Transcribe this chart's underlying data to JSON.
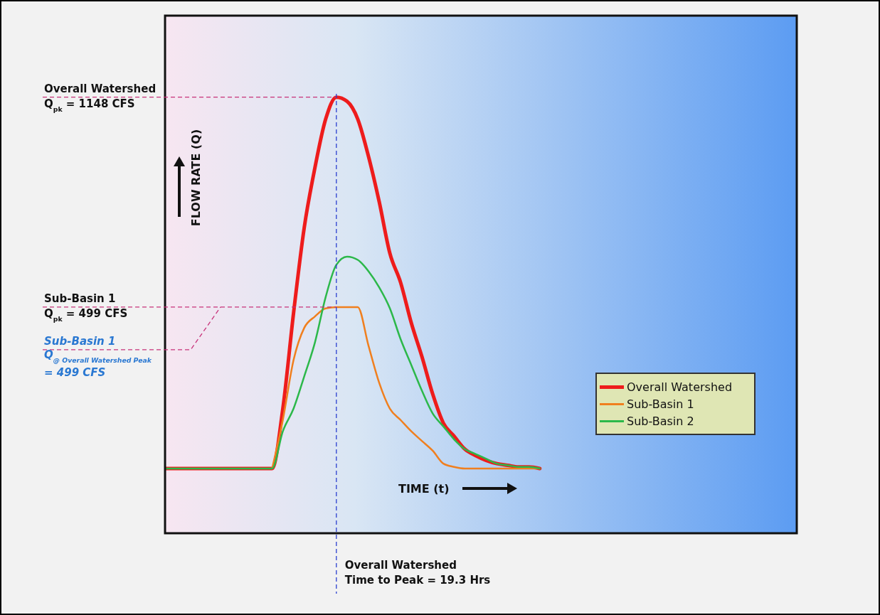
{
  "chart_data": {
    "type": "line",
    "ylim": [
      -200,
      1400
    ],
    "tick_labels": false,
    "xlabel": "TIME (t)",
    "categories": [
      null,
      null,
      null,
      null,
      null,
      null,
      null,
      null,
      null,
      null,
      null,
      null,
      null,
      null,
      null,
      null,
      null,
      null,
      null,
      null,
      null,
      null,
      null,
      null,
      null,
      null,
      null,
      null,
      null,
      null,
      null,
      null,
      null,
      null,
      null,
      null,
      null,
      null,
      null,
      null,
      null,
      null,
      null,
      null,
      null,
      null,
      null,
      null,
      null,
      null,
      null,
      null,
      null,
      null,
      null,
      null,
      null,
      null,
      null,
      null
    ],
    "series": [
      {
        "name": "Overall Watershed",
        "color": "#ee1c1c",
        "values": [
          0,
          0,
          0,
          0,
          0,
          0,
          0,
          0,
          0,
          0,
          0,
          185,
          480,
          745,
          930,
          1080,
          1148,
          1135,
          1080,
          965,
          825,
          665,
          575,
          450,
          345,
          230,
          140,
          100,
          60,
          40,
          25,
          15,
          10,
          5,
          5,
          0,
          null,
          null,
          null,
          null,
          null,
          null,
          null,
          null,
          null,
          null,
          null,
          null,
          null,
          null,
          null,
          null,
          null,
          null,
          null,
          null,
          null,
          null,
          null,
          null
        ]
      },
      {
        "name": "Sub-Basin 1",
        "color": "#f07f1e",
        "values": [
          null,
          null,
          null,
          null,
          null,
          null,
          null,
          null,
          null,
          null,
          0,
          150,
          335,
          435,
          470,
          495,
          499,
          499,
          499,
          380,
          265,
          185,
          150,
          115,
          85,
          55,
          15,
          5,
          0,
          0,
          0,
          0,
          0,
          0,
          0,
          0,
          null,
          null,
          null,
          null,
          null,
          null,
          null,
          null,
          null,
          null,
          null,
          null,
          null,
          null,
          null,
          null,
          null,
          null,
          null,
          null,
          null,
          null,
          null,
          null
        ]
      },
      {
        "name": "Sub-Basin 2",
        "color": "#2cb84a",
        "values": [
          0,
          0,
          0,
          0,
          0,
          0,
          0,
          0,
          0,
          0,
          0,
          115,
          185,
          285,
          390,
          530,
          630,
          655,
          645,
          610,
          560,
          495,
          400,
          320,
          240,
          170,
          130,
          90,
          60,
          45,
          30,
          15,
          10,
          5,
          5,
          0,
          null,
          null,
          null,
          null,
          null,
          null,
          null,
          null,
          null,
          null,
          null,
          null,
          null,
          null,
          null,
          null,
          null,
          null,
          null,
          null,
          null,
          null,
          null,
          null
        ]
      }
    ],
    "legend": "bottom right",
    "marker": "none",
    "line_style": "solid",
    "ref_lines": [
      {
        "axis": "y",
        "value": 1148,
        "label": "Overall Watershed\nQ$_{pk}$ = 1148 CFS",
        "color": "#c8337a",
        "line_style": "dashed"
      },
      {
        "axis": "y",
        "value": 499,
        "label": "Sub-Basin 1\nQ$_{pk}$ = 499 CFS",
        "color": "#c8337a",
        "line_style": "dashed"
      }
    ],
    "annotations": [
      "Sub-Basin 1\nQ$_{@ Overall Watershed Peak}$\n= 499 CFS",
      "FLOW RATE (Q)",
      "Overall Watershed\nTime to Peak = 19.3 Hrs"
    ]
  }
}
